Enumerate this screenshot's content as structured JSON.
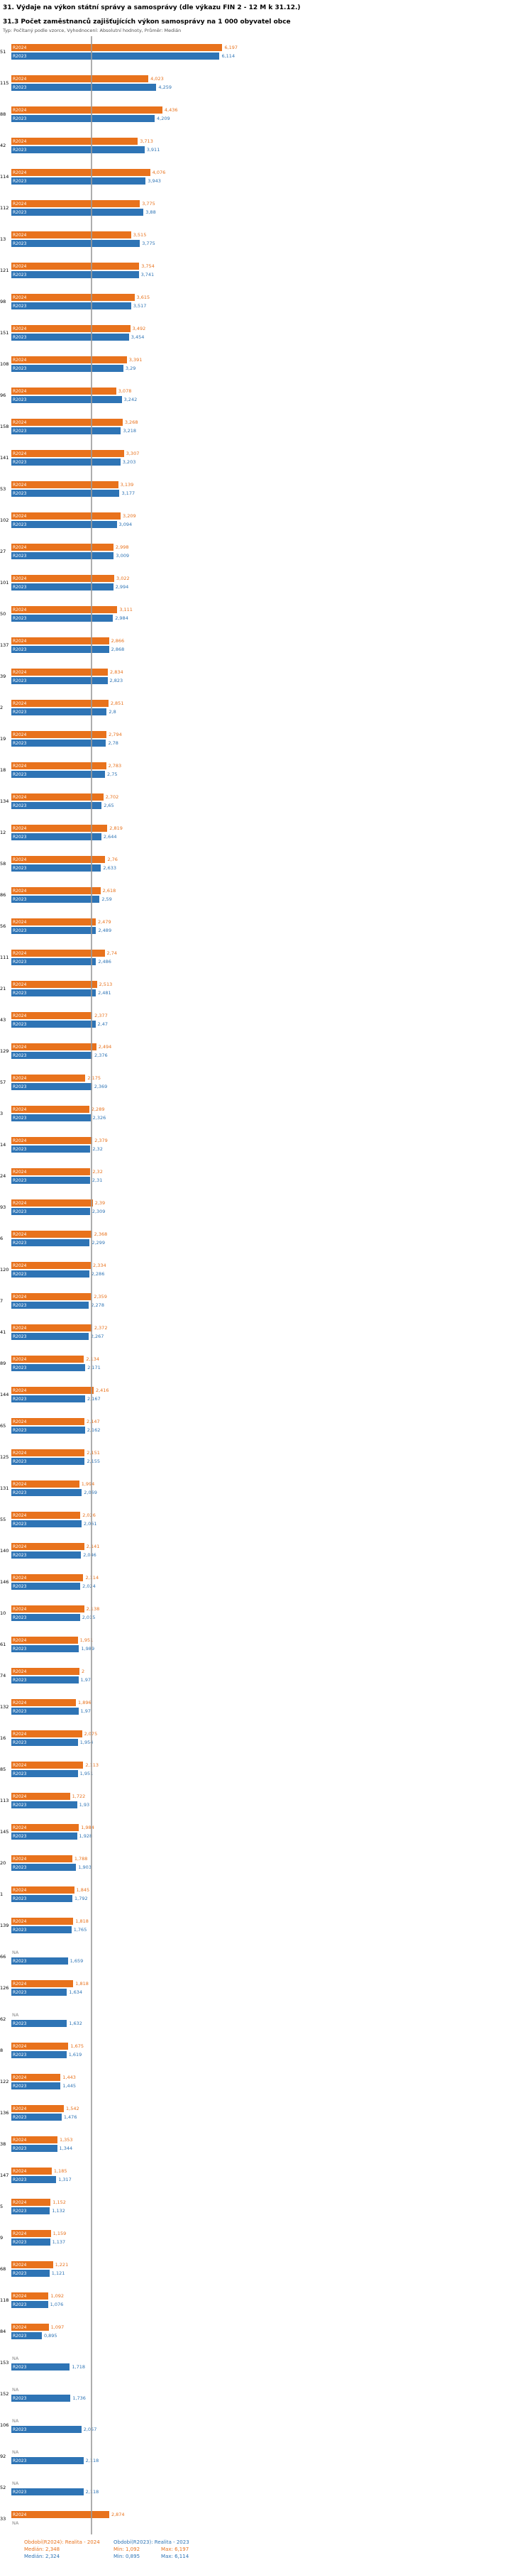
{
  "title": "31. Výdaje na výkon státní správy a samosprávy (dle výkazu FIN 2 - 12 M k 31.12.)",
  "subtitle": "31.3 Počet zaměstnanců zajišťujících výkon samosprávy na 1 000 obyvatel obce",
  "meta": "Typ: Počítaný podle vzorce, Vyhodnocení: Absolutní hodnoty, Průměr: Medián",
  "colors": {
    "r2024": "#e8721c",
    "r2023": "#2e74b5",
    "na": "#8a8a8a",
    "median_line": "#9a9a9a"
  },
  "series_labels": {
    "r2024": "R2024",
    "r2023": "R2023"
  },
  "footer": {
    "r2024": {
      "period": "Období(R2024): Realita - 2024",
      "median": "Medián: 2,348",
      "min": "Min: 1,092",
      "max": "Max: 6,197"
    },
    "r2023": {
      "period": "Období(R2023): Realita - 2023",
      "median": "Medián: 2,324",
      "min": "Min: 0,895",
      "max": "Max: 6,114"
    }
  },
  "chart_data": {
    "type": "bar",
    "orientation": "horizontal",
    "series": [
      "R2024",
      "R2023"
    ],
    "xlim": [
      0,
      6.5
    ],
    "median_2024": 2.348,
    "median_2023": 2.324,
    "min_2024": 1.092,
    "max_2024": 6.197,
    "min_2023": 0.895,
    "max_2023": 6.114,
    "value_note": "values shown with Czech decimal comma; null = NA (no data)",
    "rows": [
      {
        "id": "51",
        "r2024": "6,197",
        "r2023": "6,114"
      },
      {
        "id": "115",
        "r2024": "4,023",
        "r2023": "4,259"
      },
      {
        "id": "88",
        "r2024": "4,436",
        "r2023": "4,209"
      },
      {
        "id": "42",
        "r2024": "3,713",
        "r2023": "3,911"
      },
      {
        "id": "114",
        "r2024": "4,076",
        "r2023": "3,943"
      },
      {
        "id": "112",
        "r2024": "3,775",
        "r2023": "3,88"
      },
      {
        "id": "13",
        "r2024": "3,515",
        "r2023": "3,775"
      },
      {
        "id": "121",
        "r2024": "3,754",
        "r2023": "3,741"
      },
      {
        "id": "98",
        "r2024": "3,615",
        "r2023": "3,517"
      },
      {
        "id": "151",
        "r2024": "3,492",
        "r2023": "3,454"
      },
      {
        "id": "108",
        "r2024": "3,391",
        "r2023": "3,29"
      },
      {
        "id": "96",
        "r2024": "3,078",
        "r2023": "3,242"
      },
      {
        "id": "158",
        "r2024": "3,268",
        "r2023": "3,218"
      },
      {
        "id": "141",
        "r2024": "3,307",
        "r2023": "3,203"
      },
      {
        "id": "53",
        "r2024": "3,139",
        "r2023": "3,177"
      },
      {
        "id": "102",
        "r2024": "3,209",
        "r2023": "3,094"
      },
      {
        "id": "27",
        "r2024": "2,998",
        "r2023": "3,009"
      },
      {
        "id": "101",
        "r2024": "3,022",
        "r2023": "2,994"
      },
      {
        "id": "50",
        "r2024": "3,111",
        "r2023": "2,984"
      },
      {
        "id": "137",
        "r2024": "2,866",
        "r2023": "2,868"
      },
      {
        "id": "39",
        "r2024": "2,834",
        "r2023": "2,823"
      },
      {
        "id": "2",
        "r2024": "2,851",
        "r2023": "2,8"
      },
      {
        "id": "19",
        "r2024": "2,794",
        "r2023": "2,78"
      },
      {
        "id": "18",
        "r2024": "2,783",
        "r2023": "2,75"
      },
      {
        "id": "134",
        "r2024": "2,702",
        "r2023": "2,65"
      },
      {
        "id": "12",
        "r2024": "2,819",
        "r2023": "2,644"
      },
      {
        "id": "58",
        "r2024": "2,76",
        "r2023": "2,633"
      },
      {
        "id": "86",
        "r2024": "2,618",
        "r2023": "2,59"
      },
      {
        "id": "56",
        "r2024": "2,479",
        "r2023": "2,489"
      },
      {
        "id": "111",
        "r2024": "2,74",
        "r2023": "2,486"
      },
      {
        "id": "21",
        "r2024": "2,513",
        "r2023": "2,481"
      },
      {
        "id": "43",
        "r2024": "2,377",
        "r2023": "2,47"
      },
      {
        "id": "129",
        "r2024": "2,494",
        "r2023": "2,376"
      },
      {
        "id": "57",
        "r2024": "2,175",
        "r2023": "2,369"
      },
      {
        "id": "3",
        "r2024": "2,289",
        "r2023": "2,326"
      },
      {
        "id": "14",
        "r2024": "2,379",
        "r2023": "2,32"
      },
      {
        "id": "24",
        "r2024": "2,32",
        "r2023": "2,31"
      },
      {
        "id": "93",
        "r2024": "2,39",
        "r2023": "2,309"
      },
      {
        "id": "6",
        "r2024": "2,368",
        "r2023": "2,299"
      },
      {
        "id": "120",
        "r2024": "2,334",
        "r2023": "2,286"
      },
      {
        "id": "7",
        "r2024": "2,359",
        "r2023": "2,278"
      },
      {
        "id": "41",
        "r2024": "2,372",
        "r2023": "2,267"
      },
      {
        "id": "89",
        "r2024": "2,134",
        "r2023": "2,171"
      },
      {
        "id": "144",
        "r2024": "2,416",
        "r2023": "2,167"
      },
      {
        "id": "65",
        "r2024": "2,147",
        "r2023": "2,162"
      },
      {
        "id": "125",
        "r2024": "2,151",
        "r2023": "2,155"
      },
      {
        "id": "131",
        "r2024": "1,994",
        "r2023": "2,069"
      },
      {
        "id": "55",
        "r2024": "2,026",
        "r2023": "2,061"
      },
      {
        "id": "140",
        "r2024": "2,141",
        "r2023": "2,046"
      },
      {
        "id": "146",
        "r2024": "2,114",
        "r2023": "2,024"
      },
      {
        "id": "10",
        "r2024": "2,138",
        "r2023": "2,015"
      },
      {
        "id": "61",
        "r2024": "1,951",
        "r2023": "1,989"
      },
      {
        "id": "74",
        "r2024": "2",
        "r2023": "1,97"
      },
      {
        "id": "132",
        "r2024": "1,896",
        "r2023": "1,97"
      },
      {
        "id": "16",
        "r2024": "2,075",
        "r2023": "1,954"
      },
      {
        "id": "85",
        "r2024": "2,113",
        "r2023": "1,951"
      },
      {
        "id": "113",
        "r2024": "1,722",
        "r2023": "1,93"
      },
      {
        "id": "145",
        "r2024": "1,984",
        "r2023": "1,928"
      },
      {
        "id": "20",
        "r2024": "1,788",
        "r2023": "1,903"
      },
      {
        "id": "1",
        "r2024": "1,845",
        "r2023": "1,792"
      },
      {
        "id": "139",
        "r2024": "1,818",
        "r2023": "1,765"
      },
      {
        "id": "66",
        "r2024": null,
        "r2023": "1,659"
      },
      {
        "id": "126",
        "r2024": "1,818",
        "r2023": "1,634"
      },
      {
        "id": "62",
        "r2024": null,
        "r2023": "1,632"
      },
      {
        "id": "8",
        "r2024": "1,675",
        "r2023": "1,619"
      },
      {
        "id": "122",
        "r2024": "1,443",
        "r2023": "1,445"
      },
      {
        "id": "136",
        "r2024": "1,542",
        "r2023": "1,476"
      },
      {
        "id": "38",
        "r2024": "1,353",
        "r2023": "1,344"
      },
      {
        "id": "147",
        "r2024": "1,185",
        "r2023": "1,317"
      },
      {
        "id": "5",
        "r2024": "1,152",
        "r2023": "1,132"
      },
      {
        "id": "9",
        "r2024": "1,159",
        "r2023": "1,137"
      },
      {
        "id": "68",
        "r2024": "1,221",
        "r2023": "1,121"
      },
      {
        "id": "118",
        "r2024": "1,092",
        "r2023": "1,076"
      },
      {
        "id": "84",
        "r2024": "1,097",
        "r2023": "0,895"
      },
      {
        "id": "153",
        "r2024": null,
        "r2023": "1,718"
      },
      {
        "id": "152",
        "r2024": null,
        "r2023": "1,736"
      },
      {
        "id": "106",
        "r2024": null,
        "r2023": "2,057"
      },
      {
        "id": "92",
        "r2024": null,
        "r2023": "2,118"
      },
      {
        "id": "52",
        "r2024": null,
        "r2023": "2,118"
      },
      {
        "id": "33",
        "r2024": "2,874",
        "r2023": null
      }
    ]
  }
}
